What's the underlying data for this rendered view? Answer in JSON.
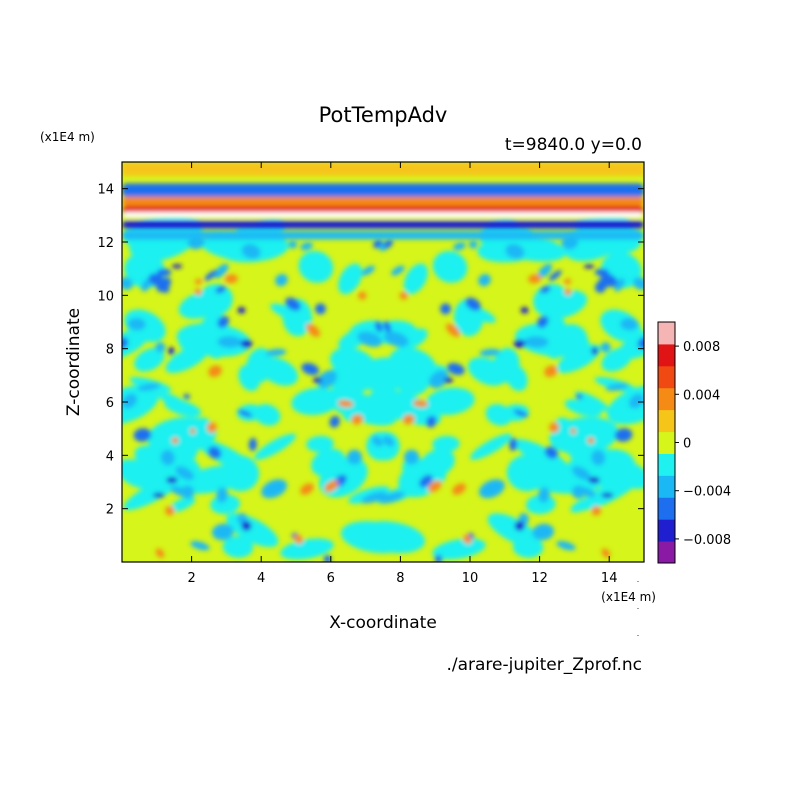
{
  "chart_data": {
    "type": "heatmap",
    "title": "PotTempAdv",
    "subtitle": "t=9840.0 y=0.0",
    "xlabel": "X-coordinate",
    "ylabel": "Z-coordinate",
    "x_unit": "(x1E4 m)",
    "y_unit": "(x1E4 m)",
    "xlim": [
      0,
      15
    ],
    "ylim": [
      0,
      15
    ],
    "x_ticks": [
      2,
      4,
      6,
      8,
      10,
      12,
      14
    ],
    "y_ticks": [
      2,
      4,
      6,
      8,
      10,
      12,
      14
    ],
    "grid": false,
    "source_file": "./arare-jupiter_Zprof.nc",
    "colorbar": {
      "levels": [
        -0.01,
        -0.008,
        -0.006,
        -0.004,
        -0.002,
        0,
        0.002,
        0.004,
        0.006,
        0.008,
        0.01
      ],
      "colors": [
        "#8a1aa6",
        "#1f1fcf",
        "#1e6ff0",
        "#1ab8f5",
        "#1ff0f0",
        "#d6f51a",
        "#f5c51a",
        "#f58a14",
        "#f04a12",
        "#e01414",
        "#f5b5b5"
      ],
      "tick_labels": [
        "0.008",
        "0.004",
        "0",
        "−0.004",
        "−0.008"
      ],
      "tick_values": [
        0.008,
        0.004,
        0,
        -0.004,
        -0.008
      ]
    }
  }
}
